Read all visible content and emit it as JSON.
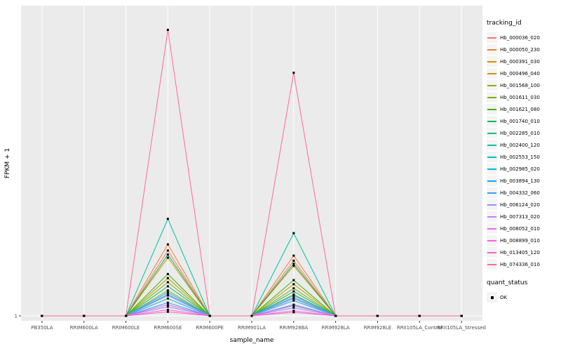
{
  "figure": {
    "background": "#FFFFFF",
    "panel_background": "#EBEBEB",
    "gridline_color": "#FFFFFF",
    "axis_text_color": "#4D4D4D",
    "tick_color": "#333333"
  },
  "axes": {
    "x_label": "sample_name",
    "y_label": "FPKM + 1",
    "y_tick_labels": [
      "1"
    ]
  },
  "legends": {
    "tracking": {
      "title": "tracking_id"
    },
    "quant": {
      "title": "quant_status",
      "items": [
        {
          "label": "OK",
          "shape": "black-square"
        }
      ]
    }
  },
  "chart_data": {
    "type": "line",
    "title": "",
    "xlabel": "sample_name",
    "ylabel": "FPKM + 1",
    "legend_position": "right",
    "grid": true,
    "point_shape": "square",
    "point_color": "#000000",
    "ylim": [
      1,
      30
    ],
    "y_ticks": [
      1
    ],
    "x_categories": [
      "PB350LA",
      "RRIM600LA",
      "RRIM600LE",
      "RRIM600SE",
      "RRIM600PE",
      "RRIM901LA",
      "RRIM928BA",
      "RRIM928LA",
      "RRIM928LE",
      "RRII105LA_Control",
      "RRII105LA_Stressed"
    ],
    "series": [
      {
        "name": "Hb_000036_020",
        "color": "#F8766D",
        "values": [
          1,
          1,
          1,
          7.4,
          1,
          1,
          6.4,
          1,
          1,
          1,
          1
        ]
      },
      {
        "name": "Hb_000050_230",
        "color": "#EA8331",
        "values": [
          1,
          1,
          1,
          8.0,
          1,
          1,
          6.9,
          1,
          1,
          1,
          1
        ]
      },
      {
        "name": "Hb_000391_030",
        "color": "#D89000",
        "values": [
          1,
          1,
          1,
          6.7,
          1,
          1,
          5.9,
          1,
          1,
          1,
          1
        ]
      },
      {
        "name": "Hb_000496_040",
        "color": "#C09B00",
        "values": [
          1,
          1,
          1,
          4.7,
          1,
          1,
          4.1,
          1,
          1,
          1,
          1
        ]
      },
      {
        "name": "Hb_001568_100",
        "color": "#A3A500",
        "values": [
          1,
          1,
          1,
          3.5,
          1,
          1,
          3.1,
          1,
          1,
          1,
          1
        ]
      },
      {
        "name": "Hb_001611_030",
        "color": "#7CAE00",
        "values": [
          1,
          1,
          1,
          4.3,
          1,
          1,
          3.7,
          1,
          1,
          1,
          1
        ]
      },
      {
        "name": "Hb_001621_080",
        "color": "#39B600",
        "values": [
          1,
          1,
          1,
          5.1,
          1,
          1,
          4.5,
          1,
          1,
          1,
          1
        ]
      },
      {
        "name": "Hb_001740_010",
        "color": "#00BB4E",
        "values": [
          1,
          1,
          1,
          7.0,
          1,
          1,
          6.1,
          1,
          1,
          1,
          1
        ]
      },
      {
        "name": "Hb_002285_010",
        "color": "#00BF7D",
        "values": [
          1,
          1,
          1,
          3.9,
          1,
          1,
          3.4,
          1,
          1,
          1,
          1
        ]
      },
      {
        "name": "Hb_002400_120",
        "color": "#00C1A3",
        "values": [
          1,
          1,
          1,
          10.5,
          1,
          1,
          9.1,
          1,
          1,
          1,
          1
        ]
      },
      {
        "name": "Hb_002553_150",
        "color": "#00BFC4",
        "values": [
          1,
          1,
          1,
          3.1,
          1,
          1,
          2.8,
          1,
          1,
          1,
          1
        ]
      },
      {
        "name": "Hb_002985_020",
        "color": "#00BAE0",
        "values": [
          1,
          1,
          1,
          2.7,
          1,
          1,
          2.5,
          1,
          1,
          1,
          1
        ]
      },
      {
        "name": "Hb_003894_130",
        "color": "#00B0F6",
        "values": [
          1,
          1,
          1,
          3.3,
          1,
          1,
          3.0,
          1,
          1,
          1,
          1
        ]
      },
      {
        "name": "Hb_004332_060",
        "color": "#35A2FF",
        "values": [
          1,
          1,
          1,
          2.3,
          1,
          1,
          2.1,
          1,
          1,
          1,
          1
        ]
      },
      {
        "name": "Hb_006124_020",
        "color": "#9590FF",
        "values": [
          1,
          1,
          1,
          1.9,
          1,
          1,
          1.8,
          1,
          1,
          1,
          1
        ]
      },
      {
        "name": "Hb_007313_020",
        "color": "#C77CFF",
        "values": [
          1,
          1,
          1,
          3.0,
          1,
          1,
          2.7,
          1,
          1,
          1,
          1
        ]
      },
      {
        "name": "Hb_008052_010",
        "color": "#E76BF3",
        "values": [
          1,
          1,
          1,
          1.6,
          1,
          1,
          1.5,
          1,
          1,
          1,
          1
        ]
      },
      {
        "name": "Hb_008899_010",
        "color": "#FA62DB",
        "values": [
          1,
          1,
          1,
          2.1,
          1,
          1,
          2.0,
          1,
          1,
          1,
          1
        ]
      },
      {
        "name": "Hb_013405_120",
        "color": "#FF62BC",
        "values": [
          1,
          1,
          1,
          1.4,
          1,
          1,
          1.35,
          1,
          1,
          1,
          1
        ]
      },
      {
        "name": "Hb_074336_010",
        "color": "#FF6A98",
        "values": [
          1,
          1,
          1,
          29.0,
          1,
          1,
          24.8,
          1,
          1,
          1,
          1
        ]
      }
    ]
  }
}
